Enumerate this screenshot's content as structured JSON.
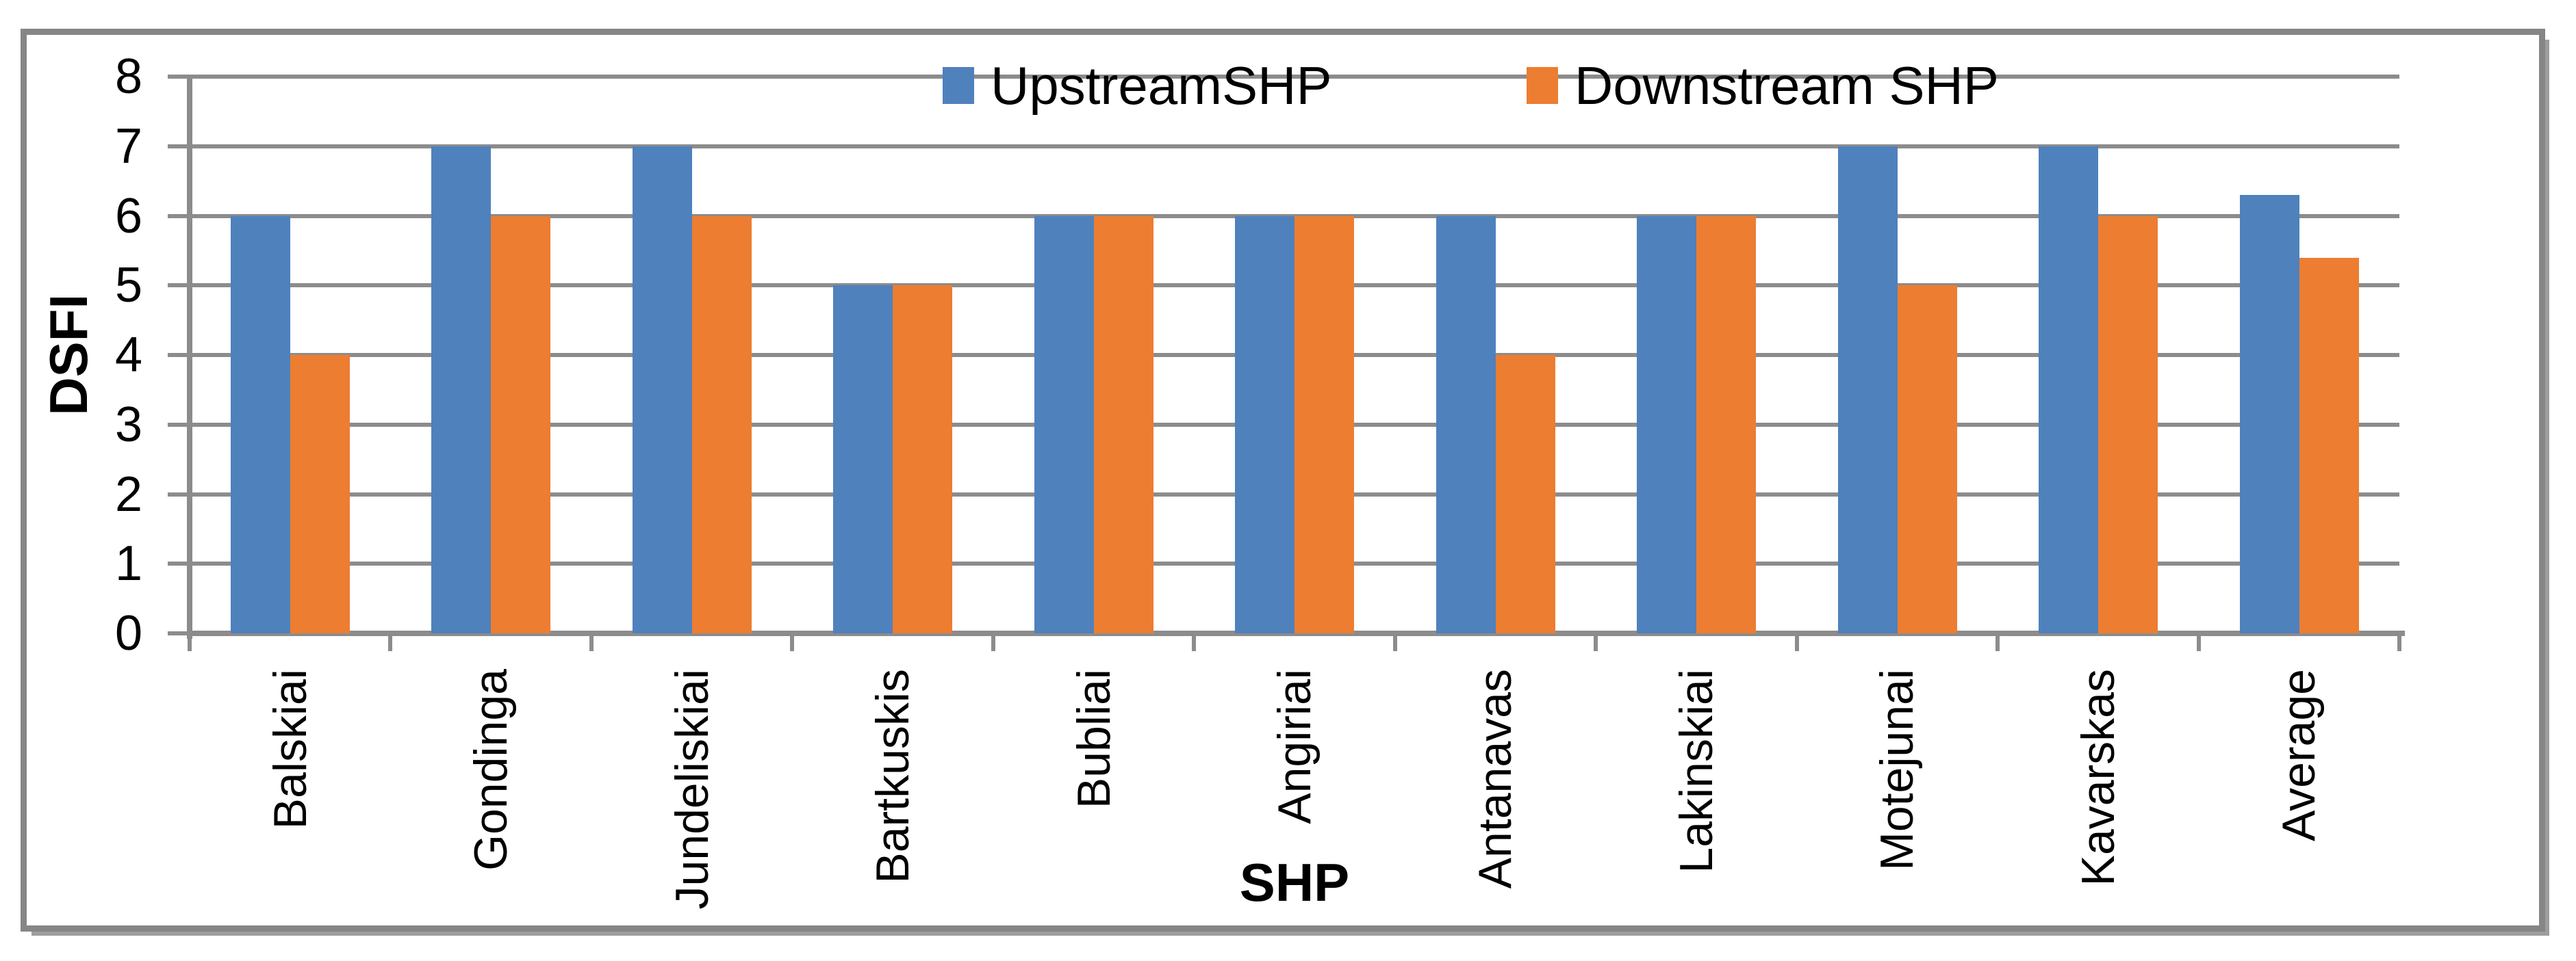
{
  "chart_data": {
    "type": "bar",
    "categories": [
      "Balskiai",
      "Gondinga",
      "Jundeliskiai",
      "Bartkuskis",
      "Bubliai",
      "Angiriai",
      "Antanavas",
      "Lakinskiai",
      "Motejunai",
      "Kavarskas",
      "Average"
    ],
    "series": [
      {
        "name": "UpstreamSHP",
        "color": "#4F81BD",
        "values": [
          6,
          7,
          7,
          5,
          6,
          6,
          6,
          6,
          7,
          7,
          6.3
        ]
      },
      {
        "name": "Downstream SHP",
        "color": "#ED7D31",
        "values": [
          4,
          6,
          6,
          5,
          6,
          6,
          4,
          6,
          5,
          6,
          5.4
        ]
      }
    ],
    "xlabel": "SHP",
    "ylabel": "DSFI",
    "ylim": [
      0,
      8
    ],
    "yticks": [
      0,
      1,
      2,
      3,
      4,
      5,
      6,
      7,
      8
    ],
    "grid": true,
    "legend_position": "top-center",
    "colors": {
      "gridline": "#8C8C8C",
      "axis": "#8C8C8C",
      "frame_border": "#868686",
      "background": "#FFFFFF",
      "text": "#000000"
    }
  }
}
